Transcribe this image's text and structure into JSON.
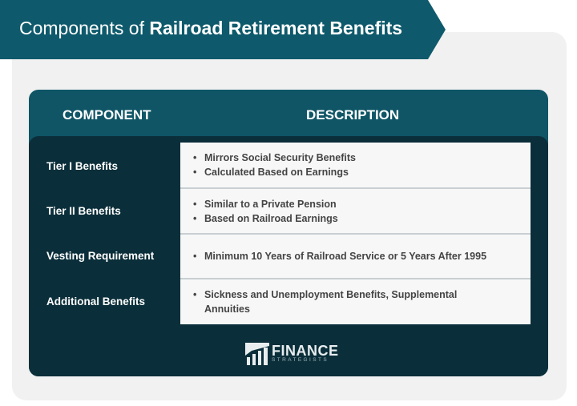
{
  "title": {
    "prefix": "Components of",
    "emphasis": "Railroad Retirement Benefits"
  },
  "colors": {
    "banner": "#0e5a6c",
    "header": "#0f5566",
    "body": "#0b2f3a",
    "cell": "#f7f7f7",
    "panel": "#f1f1f1"
  },
  "table": {
    "headers": [
      "COMPONENT",
      "DESCRIPTION"
    ],
    "rows": [
      {
        "component": "Tier I Benefits",
        "description": [
          "Mirrors Social Security Benefits",
          "Calculated Based on Earnings"
        ]
      },
      {
        "component": "Tier II Benefits",
        "description": [
          "Similar to a Private Pension",
          "Based on Railroad Earnings"
        ]
      },
      {
        "component": "Vesting Requirement",
        "description": [
          "Minimum 10 Years of Railroad Service or 5 Years After 1995"
        ]
      },
      {
        "component": "Additional Benefits",
        "description": [
          "Sickness and Unemployment Benefits, Supplemental Annuities"
        ]
      }
    ]
  },
  "logo": {
    "name": "FINANCE",
    "sub": "STRATEGISTS",
    "icon": "bar-chart-logo-icon"
  }
}
